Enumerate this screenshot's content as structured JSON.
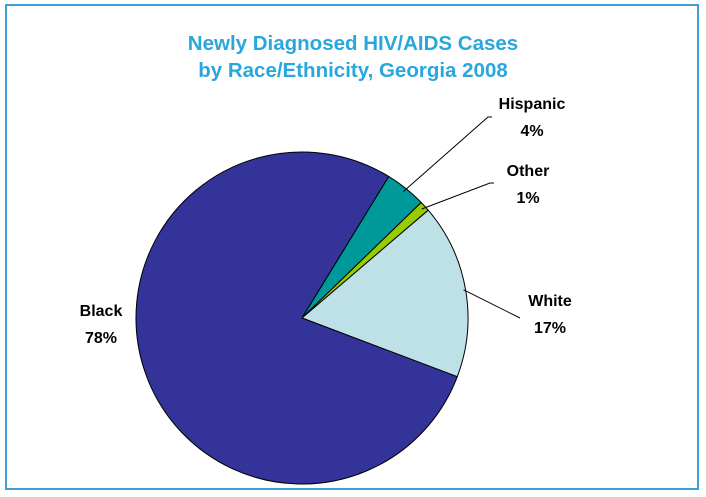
{
  "chart_data": {
    "type": "pie",
    "title_lines": [
      "Newly Diagnosed HIV/AIDS Cases",
      "by Race/Ethnicity, Georgia 2008"
    ],
    "slices": [
      {
        "name": "Hispanic",
        "value": 4,
        "label": "4%",
        "color": "#009999"
      },
      {
        "name": "Other",
        "value": 1,
        "label": "1%",
        "color": "#99cc00"
      },
      {
        "name": "White",
        "value": 17,
        "label": "17%",
        "color": "#bde1e6"
      },
      {
        "name": "Black",
        "value": 78,
        "label": "78%",
        "color": "#333399"
      }
    ],
    "legend": "none",
    "label_style": "outside with leader lines"
  }
}
